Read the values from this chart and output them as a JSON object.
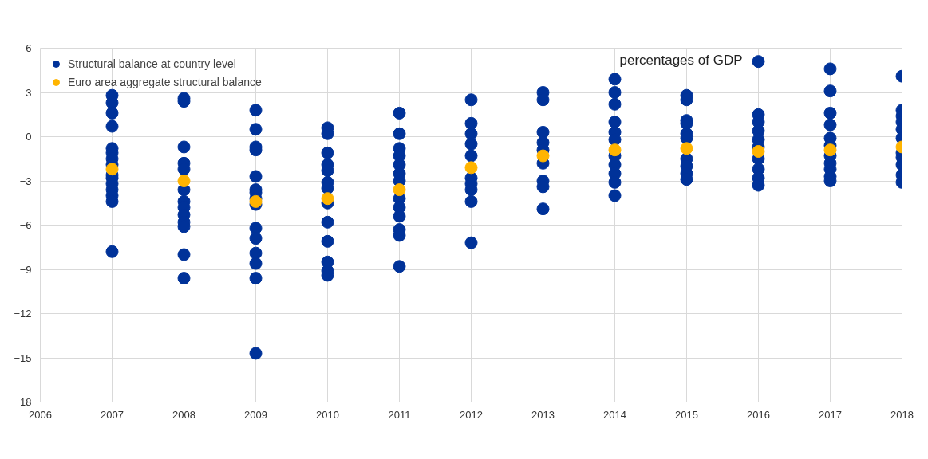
{
  "chart_data": {
    "type": "scatter",
    "annotations": [
      "percentages of GDP"
    ],
    "xlim": [
      2006,
      2018
    ],
    "xticks": [
      2006,
      2007,
      2008,
      2009,
      2010,
      2011,
      2012,
      2013,
      2014,
      2015,
      2016,
      2017,
      2018
    ],
    "ylim": [
      -18,
      6
    ],
    "yticks": [
      -18,
      -15,
      -12,
      -9,
      -6,
      -3,
      0,
      3,
      6
    ],
    "grid": true,
    "legend": "top left",
    "marker": "circle",
    "series": [
      {
        "name": "Structural balance at country level",
        "color": "#003299",
        "x": [
          2007,
          2007,
          2007,
          2007,
          2007,
          2007,
          2007,
          2007,
          2007,
          2007,
          2007,
          2007,
          2007,
          2007,
          2007,
          2008,
          2008,
          2008,
          2008,
          2008,
          2008,
          2008,
          2008,
          2008,
          2008,
          2008,
          2008,
          2008,
          2009,
          2009,
          2009,
          2009,
          2009,
          2009,
          2009,
          2009,
          2009,
          2009,
          2009,
          2009,
          2009,
          2009,
          2009,
          2010,
          2010,
          2010,
          2010,
          2010,
          2010,
          2010,
          2010,
          2010,
          2010,
          2010,
          2010,
          2010,
          2011,
          2011,
          2011,
          2011,
          2011,
          2011,
          2011,
          2011,
          2011,
          2011,
          2011,
          2011,
          2011,
          2012,
          2012,
          2012,
          2012,
          2012,
          2012,
          2012,
          2012,
          2012,
          2012,
          2013,
          2013,
          2013,
          2013,
          2013,
          2013,
          2013,
          2013,
          2013,
          2014,
          2014,
          2014,
          2014,
          2014,
          2014,
          2014,
          2014,
          2014,
          2014,
          2014,
          2015,
          2015,
          2015,
          2015,
          2015,
          2015,
          2015,
          2015,
          2015,
          2015,
          2016,
          2016,
          2016,
          2016,
          2016,
          2016,
          2016,
          2016,
          2016,
          2016,
          2017,
          2017,
          2017,
          2017,
          2017,
          2017,
          2017,
          2017,
          2017,
          2017,
          2017,
          2018,
          2018,
          2018,
          2018,
          2018,
          2018,
          2018,
          2018,
          2018,
          2018,
          2018
        ],
        "values": [
          2.8,
          2.3,
          1.6,
          0.7,
          -0.8,
          -1.1,
          -1.5,
          -1.9,
          -2.6,
          -2.8,
          -3.2,
          -3.6,
          -4.0,
          -4.4,
          -7.8,
          2.6,
          2.4,
          -0.7,
          -1.8,
          -2.2,
          -3.6,
          -4.4,
          -4.8,
          -5.3,
          -5.8,
          -6.1,
          -8.0,
          -9.6,
          1.8,
          0.5,
          -0.7,
          -0.9,
          -2.7,
          -3.6,
          -3.8,
          -4.2,
          -4.6,
          -6.2,
          -6.9,
          -7.9,
          -8.6,
          -9.6,
          -14.7,
          0.6,
          0.2,
          -1.1,
          -1.9,
          -2.3,
          -3.1,
          -3.5,
          -4.5,
          -5.8,
          -7.1,
          -8.5,
          -9.1,
          -9.4,
          1.6,
          0.2,
          -0.8,
          -1.3,
          -1.9,
          -2.5,
          -3.0,
          -4.2,
          -4.8,
          -5.4,
          -6.3,
          -6.7,
          -8.8,
          2.5,
          0.9,
          0.2,
          -0.5,
          -1.3,
          -2.8,
          -3.2,
          -3.6,
          -4.4,
          -7.2,
          3.0,
          2.5,
          0.3,
          -0.4,
          -0.9,
          -1.8,
          -3.0,
          -3.4,
          -4.9,
          3.9,
          3.0,
          2.2,
          1.0,
          0.3,
          -0.2,
          -1.3,
          -1.9,
          -2.5,
          -3.1,
          -4.0,
          2.8,
          2.5,
          1.1,
          0.9,
          0.2,
          -0.1,
          -1.5,
          -2.0,
          -2.5,
          -2.9,
          5.1,
          1.5,
          1.0,
          0.4,
          -0.2,
          -0.7,
          -1.5,
          -2.2,
          -2.8,
          -3.3,
          4.6,
          3.1,
          1.6,
          0.8,
          -0.1,
          -0.6,
          -1.3,
          -1.8,
          -2.2,
          -2.7,
          -3.0,
          4.1,
          1.8,
          1.4,
          1.0,
          0.5,
          -0.1,
          -1.1,
          -1.4,
          -1.9,
          -2.6,
          -3.1
        ]
      },
      {
        "name": "Euro area aggregate structural balance",
        "color": "#ffb400",
        "x": [
          2007,
          2008,
          2009,
          2010,
          2011,
          2012,
          2013,
          2014,
          2015,
          2016,
          2017,
          2018
        ],
        "values": [
          -2.2,
          -3.0,
          -4.4,
          -4.2,
          -3.6,
          -2.1,
          -1.3,
          -0.9,
          -0.8,
          -1.0,
          -0.9,
          -0.7
        ]
      }
    ]
  }
}
